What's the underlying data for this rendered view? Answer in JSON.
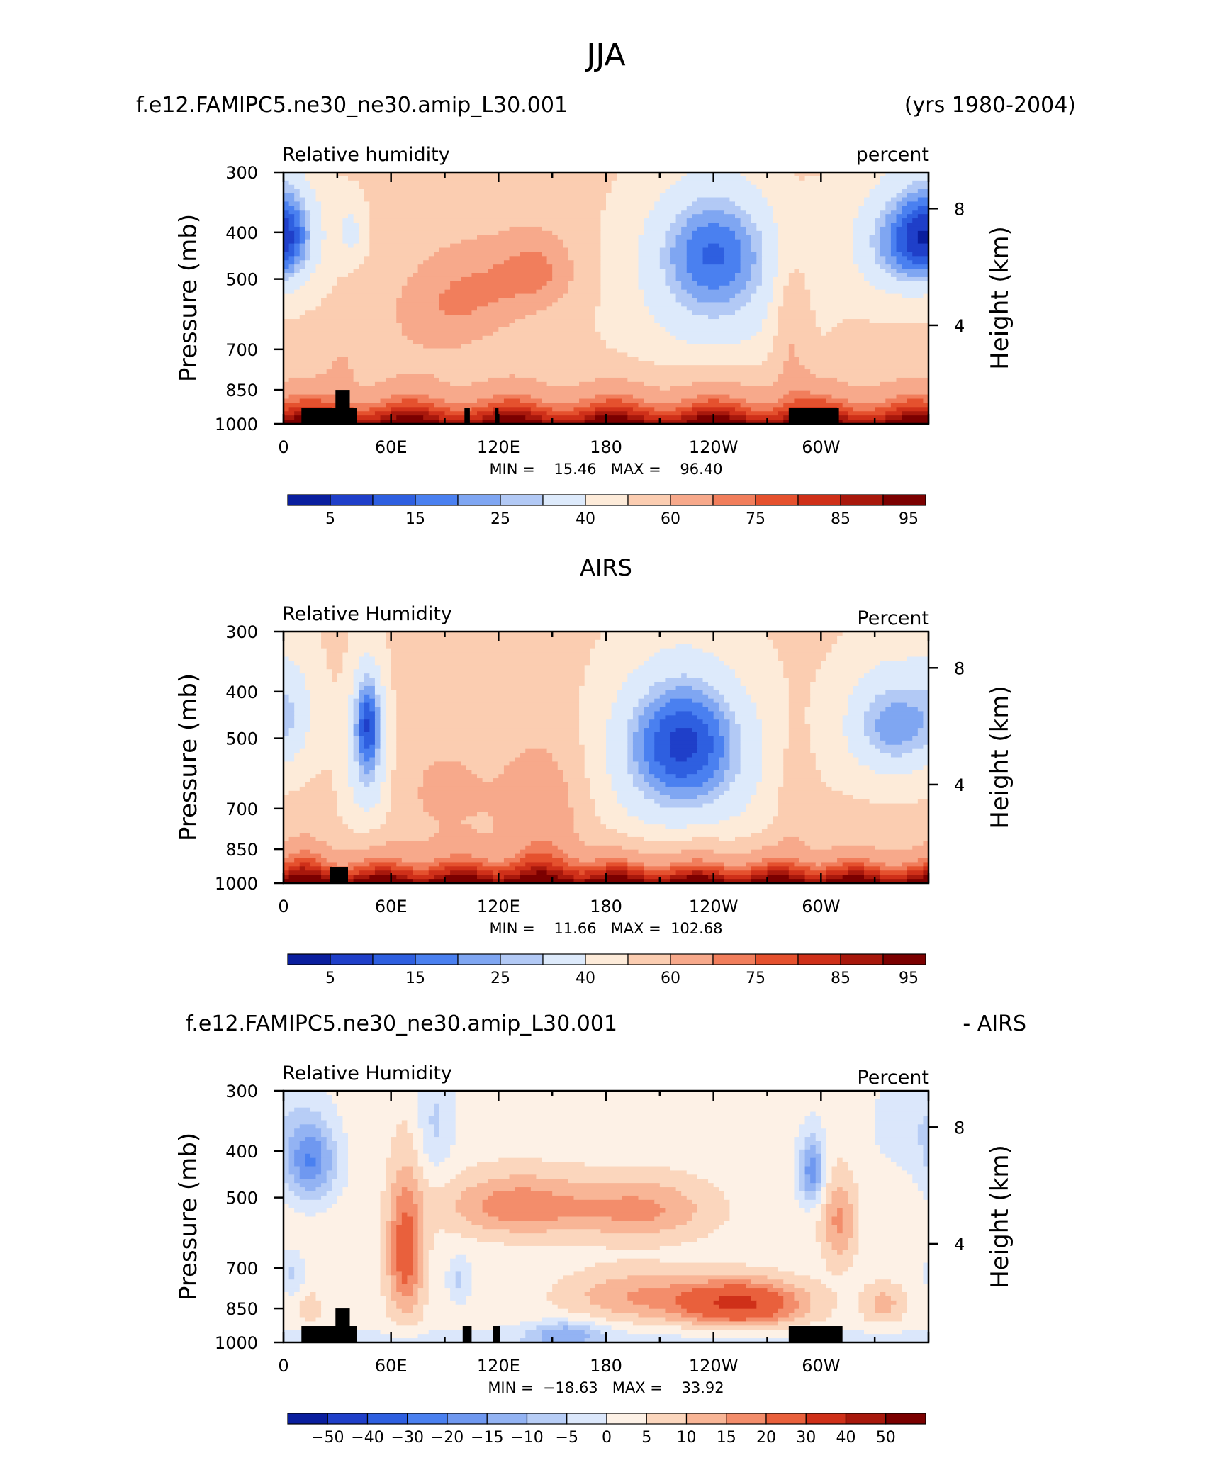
{
  "figure_title": "JJA",
  "colors": {
    "rh_levels": [
      "#0a1e9e",
      "#1f3fc9",
      "#2e5fe0",
      "#4a80f0",
      "#7fa6f2",
      "#b2c9f5",
      "#ddeafb",
      "#fdebd9",
      "#fbcdb1",
      "#f7a98b",
      "#f17e5c",
      "#e5512e",
      "#cf3019",
      "#a8180c",
      "#7b0000"
    ],
    "diff_levels": [
      "#0a1e9e",
      "#1f3fc9",
      "#2e5fe0",
      "#4a80f0",
      "#6f98f0",
      "#93b3f3",
      "#b7cdf6",
      "#dbe7fb",
      "#fdf1e6",
      "#fbd6bd",
      "#f8b596",
      "#f38d6b",
      "#e9603c",
      "#cf3019",
      "#a8180c",
      "#7b0000"
    ],
    "terrain": "#000000"
  },
  "chart_data": [
    {
      "type": "heatmap",
      "title_left": "f.e12.FAMIPC5.ne30_ne30.amip_L30.001",
      "title_right": "(yrs 1980-2004)",
      "title_center": "",
      "field_label": "Relative humidity",
      "units_label": "percent",
      "ylabel": "Pressure (mb)",
      "ylabel_right": "Height (km)",
      "y_ticks": [
        "300",
        "400",
        "500",
        "700",
        "850",
        "1000"
      ],
      "y_ticks_right": [
        "8",
        "4"
      ],
      "x_ticks": [
        "0",
        "60E",
        "120E",
        "180",
        "120W",
        "60W"
      ],
      "x_range_deg_east": [
        0,
        360
      ],
      "y_range_mb": [
        300,
        1000
      ],
      "stats": "MIN =    15.46   MAX =    96.40",
      "colorbar_labels": [
        "5",
        "15",
        "25",
        "40",
        "60",
        "75",
        "85",
        "95"
      ],
      "terrain_blocks": [
        {
          "lon": [
            10,
            41
          ],
          "p_top": 925
        },
        {
          "lon": [
            29,
            37
          ],
          "p_top": 850
        },
        {
          "lon": [
            101,
            104
          ],
          "p_top": 925
        },
        {
          "lon": [
            118,
            120
          ],
          "p_top": 925
        },
        {
          "lon": [
            282,
            310
          ],
          "p_top": 925
        }
      ],
      "field_seed": 0
    },
    {
      "type": "heatmap",
      "title_left": "",
      "title_right": "",
      "title_center": "AIRS",
      "field_label": "Relative Humidity",
      "units_label": "Percent",
      "ylabel": "Pressure (mb)",
      "ylabel_right": "Height (km)",
      "y_ticks": [
        "300",
        "400",
        "500",
        "700",
        "850",
        "1000"
      ],
      "y_ticks_right": [
        "8",
        "4"
      ],
      "x_ticks": [
        "0",
        "60E",
        "120E",
        "180",
        "120W",
        "60W"
      ],
      "x_range_deg_east": [
        0,
        360
      ],
      "y_range_mb": [
        300,
        1000
      ],
      "stats": "MIN =    11.66   MAX =  102.68",
      "colorbar_labels": [
        "5",
        "15",
        "25",
        "40",
        "60",
        "75",
        "85",
        "95"
      ],
      "terrain_blocks": [
        {
          "lon": [
            26,
            36
          ],
          "p_top": 925
        }
      ],
      "field_seed": 1
    },
    {
      "type": "heatmap",
      "title_left": "f.e12.FAMIPC5.ne30_ne30.amip_L30.001",
      "title_right": "- AIRS",
      "title_center": "",
      "field_label": "Relative Humidity",
      "units_label": "Percent",
      "ylabel": "Pressure (mb)",
      "ylabel_right": "Height (km)",
      "y_ticks": [
        "300",
        "400",
        "500",
        "700",
        "850",
        "1000"
      ],
      "y_ticks_right": [
        "8",
        "4"
      ],
      "x_ticks": [
        "0",
        "60E",
        "120E",
        "180",
        "120W",
        "60W"
      ],
      "x_range_deg_east": [
        0,
        360
      ],
      "y_range_mb": [
        300,
        1000
      ],
      "stats": "MIN =  −18.63   MAX =    33.92",
      "colorbar_labels": [
        "−50",
        "−40",
        "−30",
        "−20",
        "−15",
        "−10",
        "−5",
        "0",
        "5",
        "10",
        "15",
        "20",
        "30",
        "40",
        "50"
      ],
      "terrain_blocks": [
        {
          "lon": [
            10,
            41
          ],
          "p_top": 925
        },
        {
          "lon": [
            29,
            37
          ],
          "p_top": 850
        },
        {
          "lon": [
            100,
            105
          ],
          "p_top": 925
        },
        {
          "lon": [
            117,
            121
          ],
          "p_top": 925
        },
        {
          "lon": [
            282,
            312
          ],
          "p_top": 925
        }
      ],
      "field_seed": 2
    }
  ]
}
